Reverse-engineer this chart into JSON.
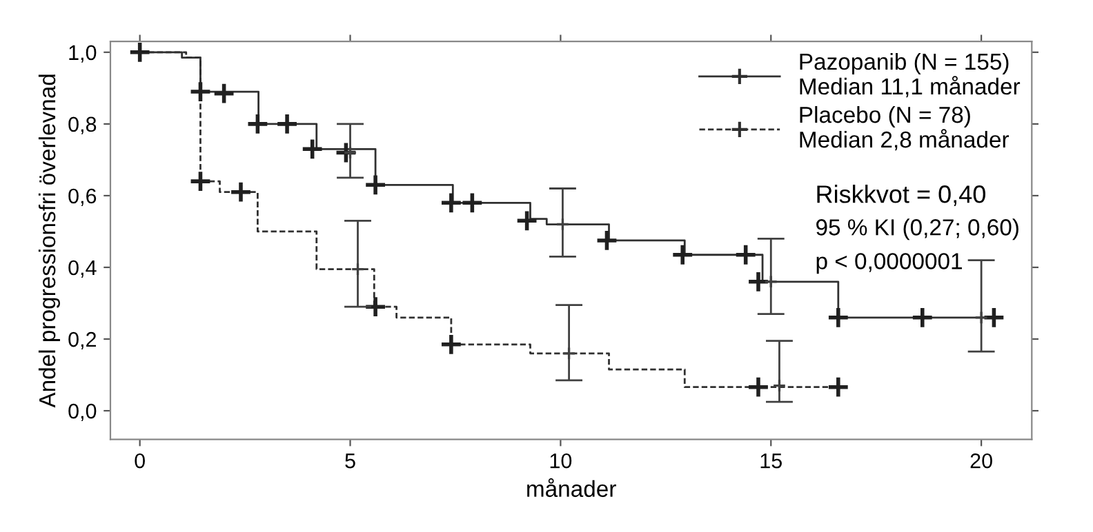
{
  "chart_data": {
    "type": "step",
    "xlabel": "månader",
    "ylabel": "Andel progressionsfri överlevnad",
    "xlim": [
      -0.7,
      21.2
    ],
    "ylim": [
      -0.08,
      1.03
    ],
    "xticks": [
      0,
      5,
      10,
      15,
      20
    ],
    "yticks": [
      {
        "value": 0,
        "label": "0,0"
      },
      {
        "value": 0.2,
        "label": "0,2"
      },
      {
        "value": 0.4,
        "label": "0,4"
      },
      {
        "value": 0.6,
        "label": "0,6"
      },
      {
        "value": 0.8,
        "label": "0,8"
      },
      {
        "value": 1.0,
        "label": "1,0"
      }
    ],
    "grid": false,
    "legend": "top right",
    "series": [
      {
        "name": "Pazopanib (N = 155)\nMedian 11,1 månader",
        "color": "#303030",
        "line_style": "solid",
        "x": [
          0,
          1.0,
          1.44,
          2.82,
          4.2,
          5.6,
          7.44,
          9.28,
          9.67,
          11.15,
          12.95,
          14.8,
          16.6,
          20.3
        ],
        "values": [
          1.0,
          0.985,
          0.89,
          0.8,
          0.73,
          0.63,
          0.58,
          0.535,
          0.52,
          0.475,
          0.435,
          0.36,
          0.26,
          0.26
        ]
      },
      {
        "name": "Placebo (N = 78)\nMedian 2,8 månader",
        "color": "#303030",
        "line_style": "dashed",
        "x": [
          0,
          1.1,
          1.44,
          1.9,
          2.8,
          4.2,
          5.57,
          6.1,
          7.4,
          9.28,
          11.15,
          12.95,
          16.6
        ],
        "values": [
          1.0,
          0.985,
          0.64,
          0.61,
          0.5,
          0.395,
          0.29,
          0.26,
          0.185,
          0.16,
          0.115,
          0.066,
          0.066
        ]
      },
      {
        "type": "scatter",
        "color": "#202020",
        "marker": "cross",
        "x": [
          0,
          1.44,
          2.0,
          2.8,
          3.5,
          4.1,
          4.9,
          5.6,
          7.4,
          7.9,
          9.2,
          11.1,
          12.9,
          14.4,
          14.7,
          16.6,
          18.6,
          20.3
        ],
        "values": [
          1.0,
          0.89,
          0.885,
          0.8,
          0.8,
          0.73,
          0.72,
          0.63,
          0.58,
          0.58,
          0.53,
          0.475,
          0.435,
          0.435,
          0.36,
          0.26,
          0.26,
          0.26
        ]
      },
      {
        "type": "scatter",
        "color": "#202020",
        "marker": "cross",
        "x": [
          1.44,
          2.4,
          5.6,
          7.4,
          14.7,
          16.6
        ],
        "values": [
          0.64,
          0.61,
          0.29,
          0.185,
          0.066,
          0.066
        ]
      },
      {
        "type": "scatter",
        "color": "#404040",
        "marker": "cross",
        "x": [
          5.0,
          10.05,
          15.0,
          20.0
        ],
        "values": [
          0.72,
          0.52,
          0.36,
          0.26
        ],
        "errors": [
          [
            0.65,
            0.8
          ],
          [
            0.43,
            0.62
          ],
          [
            0.27,
            0.48
          ],
          [
            0.165,
            0.42
          ]
        ]
      },
      {
        "type": "scatter",
        "color": "#404040",
        "marker": "cross",
        "x": [
          5.18,
          10.2,
          15.2
        ],
        "values": [
          0.395,
          0.16,
          0.07
        ],
        "errors": [
          [
            0.29,
            0.53
          ],
          [
            0.085,
            0.295
          ],
          [
            0.025,
            0.195
          ]
        ]
      }
    ],
    "annotations": [
      "Riskkvot = 0,40",
      "95 % KI (0,27; 0,60)",
      "p < 0,0000001"
    ]
  }
}
